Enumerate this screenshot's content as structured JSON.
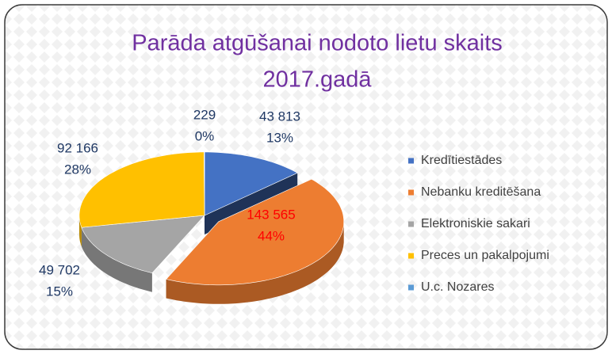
{
  "chart_data": {
    "type": "pie3d",
    "title": "Parāda atgūšanai nodoto lietu skaits",
    "subtitle": "2017.gadā",
    "categories": [
      "Kredītiestādes",
      "Nebanku kreditēšana",
      "Elektroniskie sakari",
      "Preces un pakalpojumi",
      "U.c. Nozares"
    ],
    "values": [
      43813,
      143565,
      49702,
      92166,
      229
    ],
    "value_labels": [
      "43 813",
      "143 565",
      "49 702",
      "92 166",
      "229"
    ],
    "percent_labels": [
      "13%",
      "44%",
      "15%",
      "28%",
      "0%"
    ],
    "colors": [
      "#4472c4",
      "#ed7d31",
      "#a5a5a5",
      "#ffc000",
      "#5b9bd5"
    ],
    "legend": "right"
  }
}
